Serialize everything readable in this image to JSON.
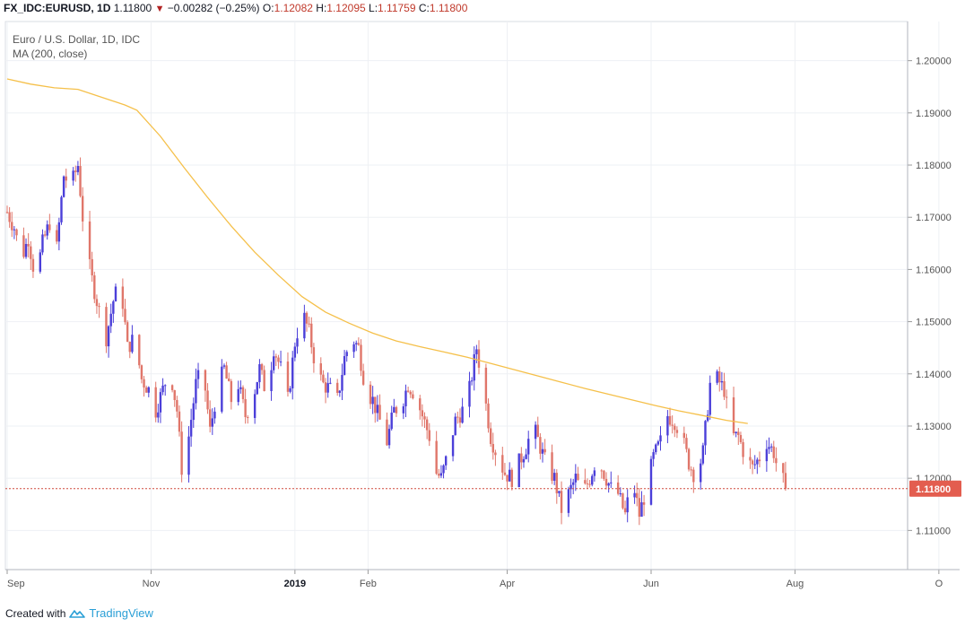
{
  "header": {
    "symbol": "FX_IDC:EURUSD,",
    "interval": "1D",
    "last": "1.11800",
    "change": "−0.00282 (−0.25%)",
    "o_label": "O:",
    "o_val": "1.12082",
    "h_label": "H:",
    "h_val": "1.12095",
    "l_label": "L:",
    "l_val": "1.11759",
    "c_label": "C:",
    "c_val": "1.11800"
  },
  "legend": {
    "title": "Euro / U.S. Dollar, 1D, IDC",
    "indicator": "MA (200, close)"
  },
  "footer": {
    "created_with": "Created with",
    "brand": "TradingView"
  },
  "colors": {
    "up": "#4b3fd9",
    "down": "#e0766a",
    "ma": "#f5c04a",
    "price_line": "#d14b3f",
    "price_badge": "#e35d4f",
    "grid": "#eef0f4",
    "axis_text": "#555555"
  },
  "chart_data": {
    "type": "candlestick",
    "title": "Euro / U.S. Dollar, 1D, IDC",
    "ylim": [
      1.1025,
      1.2075
    ],
    "y_ticks": [
      "1.20000",
      "1.19000",
      "1.18000",
      "1.17000",
      "1.16000",
      "1.15000",
      "1.14000",
      "1.13000",
      "1.12000",
      "1.11000"
    ],
    "x_ticks": [
      {
        "label": "Sep",
        "day": 0,
        "bold": false
      },
      {
        "label": "Nov",
        "day": 61,
        "bold": false
      },
      {
        "label": "2019",
        "day": 122,
        "bold": true
      },
      {
        "label": "Feb",
        "day": 153,
        "bold": false
      },
      {
        "label": "Apr",
        "day": 212,
        "bold": false
      },
      {
        "label": "Jun",
        "day": 273,
        "bold": false
      },
      {
        "label": "Aug",
        "day": 334,
        "bold": false
      },
      {
        "label": "O",
        "day": 395,
        "bold": false
      }
    ],
    "current_price": "1.11800",
    "ma_label": "MA (200, close)",
    "ma": [
      [
        0,
        1.1965
      ],
      [
        10,
        1.1955
      ],
      [
        20,
        1.1948
      ],
      [
        30,
        1.1945
      ],
      [
        40,
        1.193
      ],
      [
        50,
        1.1915
      ],
      [
        55,
        1.1905
      ],
      [
        65,
        1.1855
      ],
      [
        75,
        1.1795
      ],
      [
        85,
        1.1738
      ],
      [
        95,
        1.1683
      ],
      [
        105,
        1.1633
      ],
      [
        115,
        1.1589
      ],
      [
        125,
        1.1548
      ],
      [
        135,
        1.1518
      ],
      [
        145,
        1.1497
      ],
      [
        155,
        1.1478
      ],
      [
        165,
        1.1463
      ],
      [
        175,
        1.1452
      ],
      [
        185,
        1.1442
      ],
      [
        195,
        1.1432
      ],
      [
        205,
        1.142
      ],
      [
        215,
        1.1408
      ],
      [
        225,
        1.1396
      ],
      [
        235,
        1.1384
      ],
      [
        245,
        1.1372
      ],
      [
        255,
        1.1361
      ],
      [
        265,
        1.135
      ],
      [
        275,
        1.1339
      ],
      [
        285,
        1.1329
      ],
      [
        295,
        1.132
      ],
      [
        305,
        1.1311
      ],
      [
        314,
        1.1305
      ]
    ],
    "ohlc_anchors": [
      [
        0,
        1.171
      ],
      [
        3,
        1.168
      ],
      [
        6,
        1.162
      ],
      [
        9,
        1.166
      ],
      [
        12,
        1.158
      ],
      [
        15,
        1.165
      ],
      [
        18,
        1.169
      ],
      [
        21,
        1.164
      ],
      [
        24,
        1.178
      ],
      [
        27,
        1.176
      ],
      [
        30,
        1.18
      ],
      [
        33,
        1.165
      ],
      [
        36,
        1.158
      ],
      [
        39,
        1.152
      ],
      [
        42,
        1.147
      ],
      [
        45,
        1.154
      ],
      [
        48,
        1.158
      ],
      [
        51,
        1.145
      ],
      [
        54,
        1.147
      ],
      [
        57,
        1.139
      ],
      [
        60,
        1.137
      ],
      [
        63,
        1.133
      ],
      [
        66,
        1.137
      ],
      [
        69,
        1.141
      ],
      [
        72,
        1.133
      ],
      [
        74,
        1.122
      ],
      [
        77,
        1.128
      ],
      [
        80,
        1.138
      ],
      [
        83,
        1.141
      ],
      [
        86,
        1.129
      ],
      [
        89,
        1.137
      ],
      [
        92,
        1.141
      ],
      [
        95,
        1.135
      ],
      [
        98,
        1.138
      ],
      [
        101,
        1.132
      ],
      [
        104,
        1.135
      ],
      [
        107,
        1.141
      ],
      [
        110,
        1.136
      ],
      [
        113,
        1.145
      ],
      [
        116,
        1.141
      ],
      [
        119,
        1.135
      ],
      [
        122,
        1.146
      ],
      [
        125,
        1.152
      ],
      [
        128,
        1.148
      ],
      [
        131,
        1.141
      ],
      [
        134,
        1.138
      ],
      [
        137,
        1.137
      ],
      [
        140,
        1.135
      ],
      [
        143,
        1.143
      ],
      [
        146,
        1.147
      ],
      [
        149,
        1.145
      ],
      [
        152,
        1.137
      ],
      [
        155,
        1.135
      ],
      [
        158,
        1.131
      ],
      [
        161,
        1.127
      ],
      [
        164,
        1.133
      ],
      [
        167,
        1.134
      ],
      [
        170,
        1.138
      ],
      [
        173,
        1.136
      ],
      [
        176,
        1.132
      ],
      [
        179,
        1.128
      ],
      [
        182,
        1.121
      ],
      [
        184,
        1.12
      ],
      [
        187,
        1.125
      ],
      [
        190,
        1.131
      ],
      [
        193,
        1.133
      ],
      [
        196,
        1.137
      ],
      [
        199,
        1.145
      ],
      [
        202,
        1.137
      ],
      [
        205,
        1.128
      ],
      [
        208,
        1.124
      ],
      [
        211,
        1.121
      ],
      [
        214,
        1.12
      ],
      [
        217,
        1.123
      ],
      [
        220,
        1.126
      ],
      [
        223,
        1.13
      ],
      [
        226,
        1.126
      ],
      [
        229,
        1.122
      ],
      [
        232,
        1.12
      ],
      [
        235,
        1.114
      ],
      [
        238,
        1.117
      ],
      [
        241,
        1.12
      ],
      [
        244,
        1.117
      ],
      [
        247,
        1.12
      ],
      [
        250,
        1.124
      ],
      [
        253,
        1.121
      ],
      [
        256,
        1.118
      ],
      [
        259,
        1.117
      ],
      [
        262,
        1.113
      ],
      [
        265,
        1.12
      ],
      [
        268,
        1.113
      ],
      [
        271,
        1.118
      ],
      [
        274,
        1.124
      ],
      [
        277,
        1.127
      ],
      [
        280,
        1.132
      ],
      [
        283,
        1.131
      ],
      [
        286,
        1.128
      ],
      [
        289,
        1.123
      ],
      [
        292,
        1.12
      ],
      [
        295,
        1.125
      ],
      [
        298,
        1.138
      ],
      [
        301,
        1.139
      ],
      [
        304,
        1.137
      ],
      [
        307,
        1.128
      ],
      [
        310,
        1.128
      ],
      [
        313,
        1.124
      ],
      [
        316,
        1.122
      ],
      [
        319,
        1.124
      ],
      [
        322,
        1.127
      ],
      [
        325,
        1.125
      ],
      [
        327,
        1.121
      ],
      [
        329,
        1.1195
      ],
      [
        330,
        1.118
      ]
    ]
  }
}
